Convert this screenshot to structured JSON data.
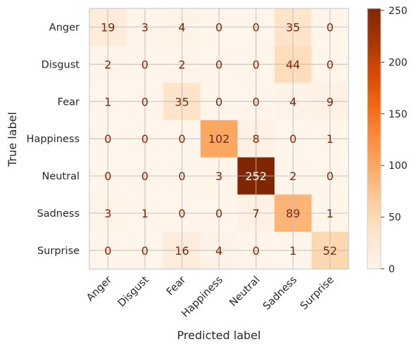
{
  "chart_data": {
    "type": "heatmap",
    "title": "",
    "xlabel": "Predicted label",
    "ylabel": "True label",
    "categories_x": [
      "Anger",
      "Disgust",
      "Fear",
      "Happiness",
      "Neutral",
      "Sadness",
      "Surprise"
    ],
    "categories_y": [
      "Anger",
      "Disgust",
      "Fear",
      "Happiness",
      "Neutral",
      "Sadness",
      "Surprise"
    ],
    "values": [
      [
        19,
        3,
        4,
        0,
        0,
        35,
        0
      ],
      [
        2,
        0,
        2,
        0,
        0,
        44,
        0
      ],
      [
        1,
        0,
        35,
        0,
        0,
        4,
        9
      ],
      [
        0,
        0,
        0,
        102,
        8,
        0,
        1
      ],
      [
        0,
        0,
        0,
        3,
        252,
        2,
        0
      ],
      [
        3,
        1,
        0,
        0,
        7,
        89,
        1
      ],
      [
        0,
        0,
        16,
        4,
        0,
        1,
        52
      ]
    ],
    "colorbar": {
      "min": 0,
      "max": 252,
      "ticks": [
        0,
        50,
        100,
        150,
        200,
        250
      ],
      "colormap": "Oranges",
      "colors": [
        "#fff5eb",
        "#fee6ce",
        "#fdd0a2",
        "#fdae6b",
        "#fd8d3c",
        "#f16913",
        "#d94801",
        "#a63603",
        "#7f2704"
      ]
    },
    "grid": true,
    "x_tick_rotation": 45
  }
}
